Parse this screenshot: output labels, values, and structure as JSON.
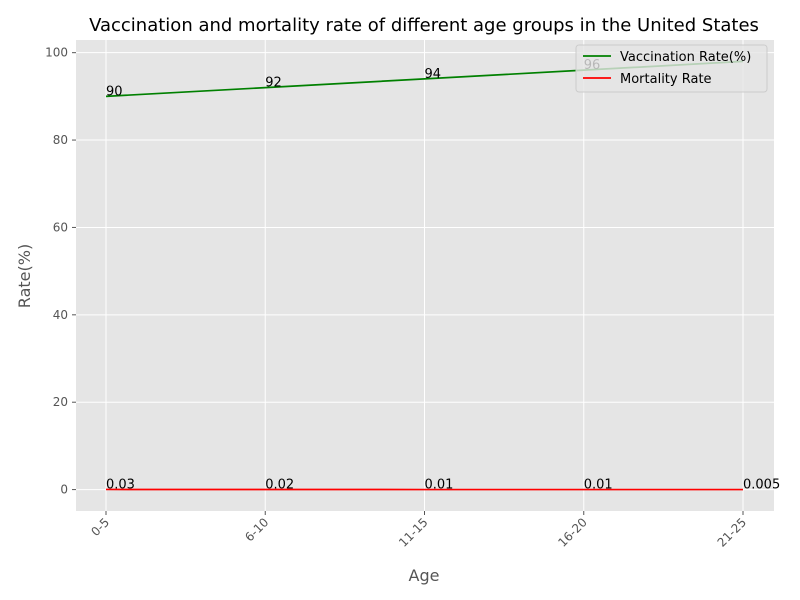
{
  "chart_data": {
    "type": "line",
    "title": "Vaccination and mortality rate of different age groups in the United States",
    "xlabel": "Age",
    "ylabel": "Rate(%)",
    "categories": [
      "0-5",
      "6-10",
      "11-15",
      "16-20",
      "21-25"
    ],
    "ylim": [
      -4.9,
      102.9
    ],
    "yticks": [
      0,
      20,
      40,
      60,
      80,
      100
    ],
    "grid": true,
    "legend_position": "top-right",
    "series": [
      {
        "name": "Vaccination Rate(%)",
        "color": "#008000",
        "values": [
          90,
          92,
          94,
          96,
          98
        ],
        "labels": [
          "90",
          "92",
          "94",
          "96",
          ""
        ]
      },
      {
        "name": "Mortality Rate",
        "color": "#ff0000",
        "values": [
          0.03,
          0.02,
          0.01,
          0.01,
          0.005
        ],
        "labels": [
          "0.03",
          "0.02",
          "0.01",
          "0.01",
          "0.005"
        ]
      }
    ]
  }
}
